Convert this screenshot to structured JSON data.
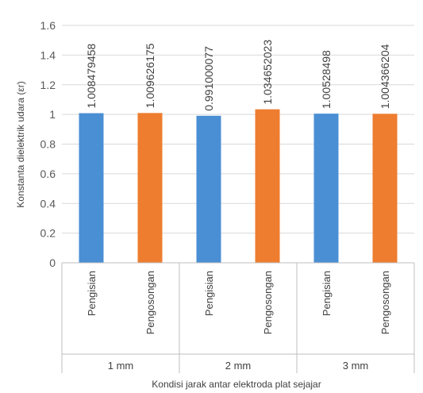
{
  "chart_data": {
    "type": "bar",
    "ylabel": "Konstanta dielektrik udara (εr)",
    "xlabel": "Kondisi jarak antar elektroda plat sejajar",
    "ylim": [
      0,
      1.6
    ],
    "yticks": [
      "0",
      "0.2",
      "0.4",
      "0.6",
      "0.8",
      "1",
      "1.2",
      "1.4",
      "1.6"
    ],
    "grid": true,
    "groups": [
      {
        "label": "1 mm",
        "bars": [
          {
            "category": "Pengisian",
            "value": 1.008479458,
            "label": "1.008479458",
            "color": "#4a8fd4"
          },
          {
            "category": "Pengosongan",
            "value": 1.009626175,
            "label": "1.009626175",
            "color": "#ee7d2f"
          }
        ]
      },
      {
        "label": "2 mm",
        "bars": [
          {
            "category": "Pengisian",
            "value": 0.991000077,
            "label": "0.991000077",
            "color": "#4a8fd4"
          },
          {
            "category": "Pengosongan",
            "value": 1.034652023,
            "label": "1.034652023",
            "color": "#ee7d2f"
          }
        ]
      },
      {
        "label": "3 mm",
        "bars": [
          {
            "category": "Pengisian",
            "value": 1.00528498,
            "label": "1.00528498",
            "color": "#4a8fd4"
          },
          {
            "category": "Pengosongan",
            "value": 1.004366204,
            "label": "1.004366204",
            "color": "#ee7d2f"
          }
        ]
      }
    ]
  }
}
